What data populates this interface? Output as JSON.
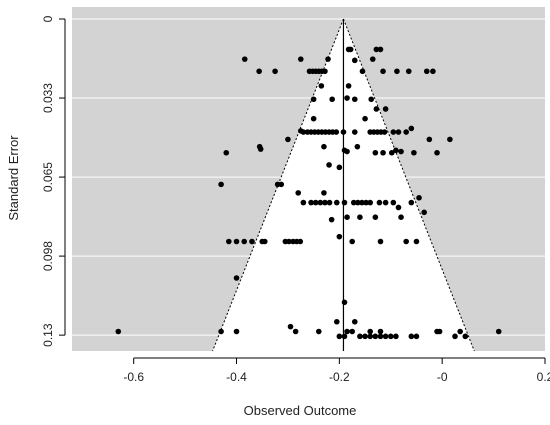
{
  "chart_data": {
    "type": "scatter",
    "subtype": "funnel-plot",
    "xlabel": "Observed Outcome",
    "ylabel": "Standard Error",
    "xlim": [
      -0.72,
      0.2
    ],
    "ylim": [
      0.132,
      0
    ],
    "y_reversed": true,
    "xticks": [
      -0.6,
      -0.4,
      -0.2,
      0,
      0.2
    ],
    "xtick_labels": [
      "-0.6",
      "-0.4",
      "-0.2",
      "-0",
      "0.2"
    ],
    "yticks": [
      0,
      0.0325,
      0.065,
      0.0975,
      0.13
    ],
    "ytick_labels": [
      "0",
      "0.033",
      "0.065",
      "0.098",
      "0.13"
    ],
    "center_line_x": -0.192,
    "funnel_apex": [
      -0.192,
      0
    ],
    "funnel_base": [
      -0.4465,
      0.13
    ],
    "funnel_base_right": [
      0.0625,
      0.13
    ],
    "colors": {
      "panel_background": "#d3d3d3",
      "funnel_fill": "#ffffff",
      "gridline": "#ffffff",
      "points": "#000000"
    },
    "points": [
      [
        -0.384,
        0.0165
      ],
      [
        -0.356,
        0.0215
      ],
      [
        -0.325,
        0.0215
      ],
      [
        -0.275,
        0.0165
      ],
      [
        -0.258,
        0.0215
      ],
      [
        -0.252,
        0.0215
      ],
      [
        -0.246,
        0.0215
      ],
      [
        -0.24,
        0.0215
      ],
      [
        -0.234,
        0.0215
      ],
      [
        -0.228,
        0.0215
      ],
      [
        -0.222,
        0.0165
      ],
      [
        -0.182,
        0.0125
      ],
      [
        -0.178,
        0.0125
      ],
      [
        -0.17,
        0.017
      ],
      [
        -0.155,
        0.0215
      ],
      [
        -0.135,
        0.0165
      ],
      [
        -0.128,
        0.0125
      ],
      [
        -0.12,
        0.0125
      ],
      [
        -0.115,
        0.0215
      ],
      [
        -0.088,
        0.0215
      ],
      [
        -0.065,
        0.0215
      ],
      [
        -0.03,
        0.0215
      ],
      [
        -0.018,
        0.0215
      ],
      [
        -0.235,
        0.0275
      ],
      [
        -0.182,
        0.0275
      ],
      [
        -0.25,
        0.033
      ],
      [
        -0.214,
        0.033
      ],
      [
        -0.185,
        0.0325
      ],
      [
        -0.17,
        0.033
      ],
      [
        -0.138,
        0.033
      ],
      [
        -0.128,
        0.037
      ],
      [
        -0.25,
        0.041
      ],
      [
        -0.15,
        0.041
      ],
      [
        -0.11,
        0.037
      ],
      [
        -0.275,
        0.046
      ],
      [
        -0.3,
        0.0495
      ],
      [
        -0.27,
        0.0465
      ],
      [
        -0.262,
        0.0465
      ],
      [
        -0.255,
        0.0465
      ],
      [
        -0.248,
        0.0465
      ],
      [
        -0.241,
        0.0465
      ],
      [
        -0.234,
        0.0465
      ],
      [
        -0.227,
        0.0465
      ],
      [
        -0.22,
        0.0465
      ],
      [
        -0.213,
        0.0465
      ],
      [
        -0.206,
        0.0465
      ],
      [
        -0.192,
        0.0465
      ],
      [
        -0.17,
        0.0465
      ],
      [
        -0.14,
        0.0465
      ],
      [
        -0.133,
        0.0465
      ],
      [
        -0.126,
        0.0465
      ],
      [
        -0.119,
        0.0465
      ],
      [
        -0.112,
        0.0465
      ],
      [
        -0.095,
        0.0465
      ],
      [
        -0.085,
        0.0465
      ],
      [
        -0.07,
        0.0465
      ],
      [
        -0.06,
        0.045
      ],
      [
        -0.025,
        0.0495
      ],
      [
        -0.42,
        0.055
      ],
      [
        -0.355,
        0.0525
      ],
      [
        -0.353,
        0.0535
      ],
      [
        -0.23,
        0.0525
      ],
      [
        -0.19,
        0.054
      ],
      [
        -0.185,
        0.0545
      ],
      [
        -0.165,
        0.0525
      ],
      [
        -0.13,
        0.055
      ],
      [
        -0.115,
        0.055
      ],
      [
        -0.098,
        0.055
      ],
      [
        -0.09,
        0.054
      ],
      [
        -0.08,
        0.0545
      ],
      [
        -0.055,
        0.055
      ],
      [
        -0.01,
        0.055
      ],
      [
        0.015,
        0.0495
      ],
      [
        -0.43,
        0.068
      ],
      [
        -0.32,
        0.068
      ],
      [
        -0.313,
        0.068
      ],
      [
        -0.28,
        0.0715
      ],
      [
        -0.23,
        0.0715
      ],
      [
        -0.22,
        0.06
      ],
      [
        -0.2,
        0.061
      ],
      [
        -0.27,
        0.0755
      ],
      [
        -0.255,
        0.0755
      ],
      [
        -0.246,
        0.0755
      ],
      [
        -0.237,
        0.0755
      ],
      [
        -0.228,
        0.0755
      ],
      [
        -0.219,
        0.0755
      ],
      [
        -0.205,
        0.0755
      ],
      [
        -0.19,
        0.0755
      ],
      [
        -0.172,
        0.0755
      ],
      [
        -0.164,
        0.0755
      ],
      [
        -0.156,
        0.0755
      ],
      [
        -0.148,
        0.0755
      ],
      [
        -0.14,
        0.0755
      ],
      [
        -0.122,
        0.0755
      ],
      [
        -0.11,
        0.0755
      ],
      [
        -0.095,
        0.0755
      ],
      [
        -0.085,
        0.0775
      ],
      [
        -0.06,
        0.0755
      ],
      [
        -0.045,
        0.0735
      ],
      [
        -0.035,
        0.0795
      ],
      [
        -0.215,
        0.0825
      ],
      [
        -0.185,
        0.0815
      ],
      [
        -0.16,
        0.0815
      ],
      [
        -0.13,
        0.0815
      ],
      [
        -0.08,
        0.0815
      ],
      [
        -0.2,
        0.0895
      ],
      [
        -0.415,
        0.0915
      ],
      [
        -0.4,
        0.0915
      ],
      [
        -0.385,
        0.0915
      ],
      [
        -0.37,
        0.0915
      ],
      [
        -0.35,
        0.0915
      ],
      [
        -0.345,
        0.0915
      ],
      [
        -0.305,
        0.0915
      ],
      [
        -0.298,
        0.0915
      ],
      [
        -0.29,
        0.0915
      ],
      [
        -0.283,
        0.0915
      ],
      [
        -0.276,
        0.0915
      ],
      [
        -0.175,
        0.0915
      ],
      [
        -0.12,
        0.0915
      ],
      [
        -0.07,
        0.0915
      ],
      [
        -0.05,
        0.0915
      ],
      [
        -0.4,
        0.1065
      ],
      [
        -0.19,
        0.1165
      ],
      [
        -0.205,
        0.1245
      ],
      [
        -0.17,
        0.1245
      ],
      [
        -0.63,
        0.1285
      ],
      [
        -0.43,
        0.1285
      ],
      [
        -0.4,
        0.1285
      ],
      [
        -0.295,
        0.1265
      ],
      [
        -0.285,
        0.1285
      ],
      [
        -0.24,
        0.1285
      ],
      [
        -0.185,
        0.1285
      ],
      [
        -0.175,
        0.1285
      ],
      [
        -0.14,
        0.1285
      ],
      [
        -0.12,
        0.1285
      ],
      [
        -0.06,
        0.1305
      ],
      [
        -0.05,
        0.1305
      ],
      [
        -0.01,
        0.1285
      ],
      [
        -0.005,
        0.1285
      ],
      [
        0.035,
        0.1285
      ],
      [
        0.11,
        0.1285
      ],
      [
        -0.2,
        0.1305
      ],
      [
        -0.19,
        0.1305
      ],
      [
        -0.16,
        0.1305
      ],
      [
        -0.15,
        0.1305
      ],
      [
        -0.14,
        0.1305
      ],
      [
        -0.13,
        0.1305
      ],
      [
        -0.12,
        0.1305
      ],
      [
        -0.11,
        0.1305
      ],
      [
        -0.1,
        0.1305
      ],
      [
        -0.09,
        0.1305
      ],
      [
        0.025,
        0.1305
      ],
      [
        0.045,
        0.1305
      ]
    ]
  }
}
